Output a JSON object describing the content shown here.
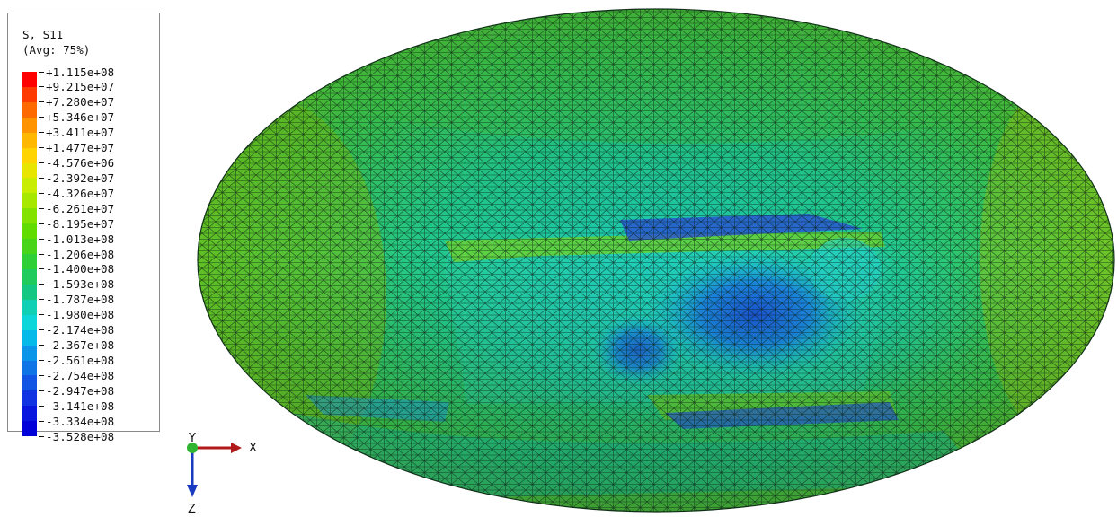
{
  "legend": {
    "title_line1": "S, S11",
    "title_line2": "(Avg: 75%)",
    "colors": [
      "#ff0000",
      "#ff3a00",
      "#ff6a00",
      "#ff9400",
      "#ffb700",
      "#ffd400",
      "#e8e600",
      "#c9ed00",
      "#a6e800",
      "#83e200",
      "#60dc00",
      "#48d418",
      "#2fcf38",
      "#1fcb5c",
      "#14c884",
      "#0fd0b4",
      "#0cd6d9",
      "#05b9e8",
      "#0a95e8",
      "#0f74e6",
      "#1254e4",
      "#1034e2",
      "#0816de",
      "#0000d8"
    ],
    "values": [
      "+1.115e+08",
      "+9.215e+07",
      "+7.280e+07",
      "+5.346e+07",
      "+3.411e+07",
      "+1.477e+07",
      "-4.576e+06",
      "-2.392e+07",
      "-4.326e+07",
      "-6.261e+07",
      "-8.195e+07",
      "-1.013e+08",
      "-1.206e+08",
      "-1.400e+08",
      "-1.593e+08",
      "-1.787e+08",
      "-1.980e+08",
      "-2.174e+08",
      "-2.367e+08",
      "-2.561e+08",
      "-2.754e+08",
      "-2.947e+08",
      "-3.141e+08",
      "-3.334e+08",
      "-3.528e+08"
    ]
  },
  "triad": {
    "x_label": "X",
    "y_label": "Y",
    "z_label": "Z",
    "x_color": "#b01a1a",
    "y_color": "#2fb52f",
    "z_color": "#1a3bbf"
  },
  "model": {
    "mesh_color": "#0a1a12"
  }
}
